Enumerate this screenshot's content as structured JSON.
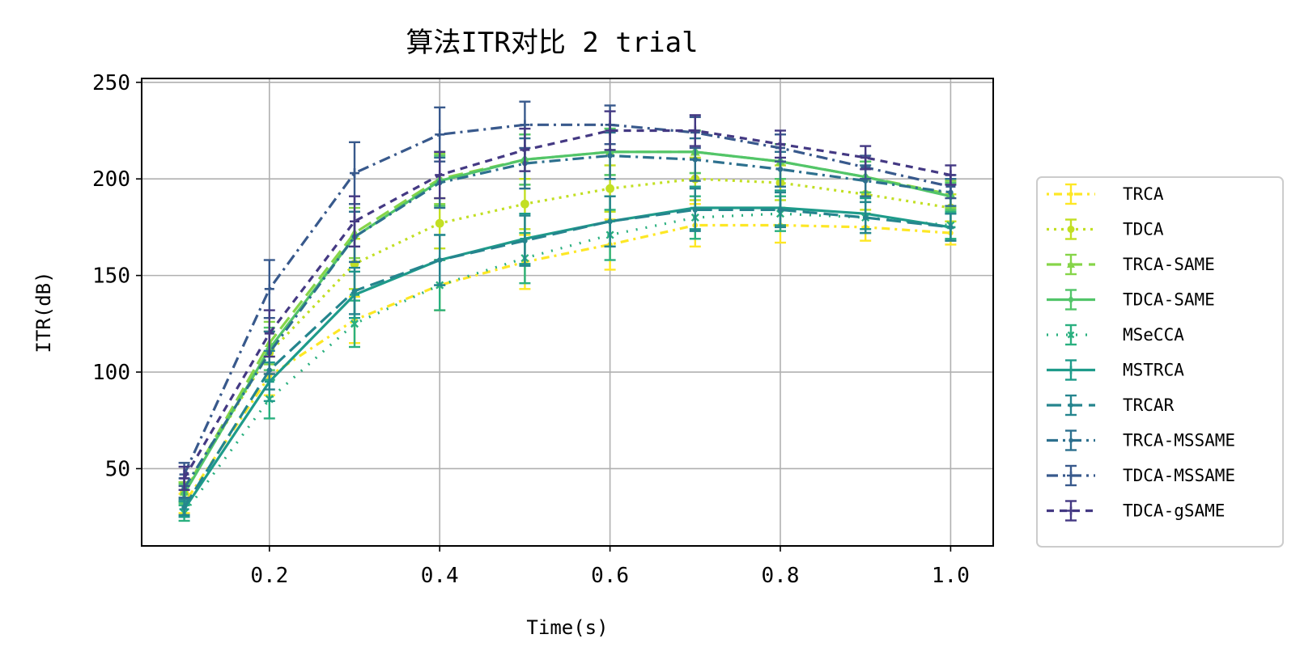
{
  "chart_data": {
    "type": "line",
    "title": "算法ITR对比 2 trial",
    "xlabel": "Time(s)",
    "ylabel": "ITR(dB)",
    "xlim": [
      0.05,
      1.05
    ],
    "ylim": [
      10,
      252
    ],
    "xticks": [
      "0.2",
      "0.4",
      "0.6",
      "0.8",
      "1.0"
    ],
    "yticks": [
      "50",
      "100",
      "150",
      "200",
      "250"
    ],
    "grid": true,
    "legend_position": "right, outside plot",
    "x": [
      0.1,
      0.2,
      0.3,
      0.4,
      0.5,
      0.6,
      0.7,
      0.8,
      0.9,
      1.0
    ],
    "series": [
      {
        "name": "TRCA",
        "color": "#fde725",
        "dash": "dotted-dash",
        "marker": "point",
        "values": [
          32,
          98,
          127,
          145,
          157,
          166,
          176,
          176,
          175,
          172
        ],
        "errors": [
          5,
          10,
          12,
          13,
          14,
          13,
          11,
          9,
          7,
          6
        ]
      },
      {
        "name": "TDCA",
        "color": "#c2df23",
        "dash": "dotted",
        "marker": "circle",
        "values": [
          38,
          110,
          156,
          177,
          187,
          195,
          200,
          198,
          192,
          185
        ],
        "errors": [
          5,
          11,
          13,
          13,
          13,
          12,
          11,
          9,
          8,
          7
        ]
      },
      {
        "name": "TRCA-SAME",
        "color": "#86d549",
        "dash": "dashed",
        "marker": "triangle",
        "values": [
          38,
          115,
          172,
          200,
          210,
          214,
          214,
          209,
          201,
          192
        ],
        "errors": [
          5,
          11,
          13,
          13,
          13,
          12,
          11,
          9,
          8,
          7
        ]
      },
      {
        "name": "TDCA-SAME",
        "color": "#52c569",
        "dash": "solid",
        "marker": "diamond",
        "values": [
          37,
          112,
          170,
          199,
          210,
          214,
          214,
          209,
          201,
          191
        ],
        "errors": [
          5,
          11,
          13,
          13,
          13,
          12,
          11,
          9,
          8,
          7
        ]
      },
      {
        "name": "MSeCCA",
        "color": "#2ab07f",
        "dash": "loose-dotted",
        "marker": "x",
        "values": [
          27,
          86,
          125,
          145,
          159,
          171,
          180,
          182,
          180,
          176
        ],
        "errors": [
          4,
          10,
          12,
          13,
          13,
          13,
          11,
          9,
          8,
          7
        ]
      },
      {
        "name": "MSTRCA",
        "color": "#1e9b8a",
        "dash": "solid",
        "marker": "plus",
        "values": [
          29,
          95,
          140,
          158,
          169,
          178,
          185,
          185,
          182,
          175
        ],
        "errors": [
          4,
          10,
          12,
          13,
          13,
          13,
          11,
          9,
          8,
          7
        ]
      },
      {
        "name": "TRCAR",
        "color": "#25858e",
        "dash": "dashed",
        "marker": "point",
        "values": [
          30,
          101,
          142,
          158,
          168,
          178,
          184,
          184,
          180,
          175
        ],
        "errors": [
          4,
          10,
          12,
          13,
          13,
          13,
          11,
          9,
          8,
          7
        ]
      },
      {
        "name": "TRCA-MSSAME",
        "color": "#2d708e",
        "dash": "dash-dot",
        "marker": "point",
        "values": [
          40,
          110,
          170,
          198,
          208,
          212,
          210,
          205,
          199,
          193
        ],
        "errors": [
          5,
          11,
          13,
          13,
          13,
          12,
          11,
          9,
          8,
          7
        ]
      },
      {
        "name": "TDCA-MSSAME",
        "color": "#38598c",
        "dash": "dash-dot",
        "marker": "plus",
        "values": [
          47,
          143,
          203,
          223,
          228,
          228,
          224,
          216,
          206,
          196
        ],
        "errors": [
          6,
          15,
          16,
          14,
          12,
          10,
          8,
          7,
          6,
          6
        ]
      },
      {
        "name": "TDCA-gSAME",
        "color": "#443983",
        "dash": "dense-dashed",
        "marker": "plus",
        "values": [
          45,
          120,
          178,
          202,
          215,
          225,
          225,
          218,
          211,
          202
        ],
        "errors": [
          6,
          12,
          13,
          12,
          11,
          10,
          8,
          7,
          6,
          5
        ]
      }
    ]
  }
}
